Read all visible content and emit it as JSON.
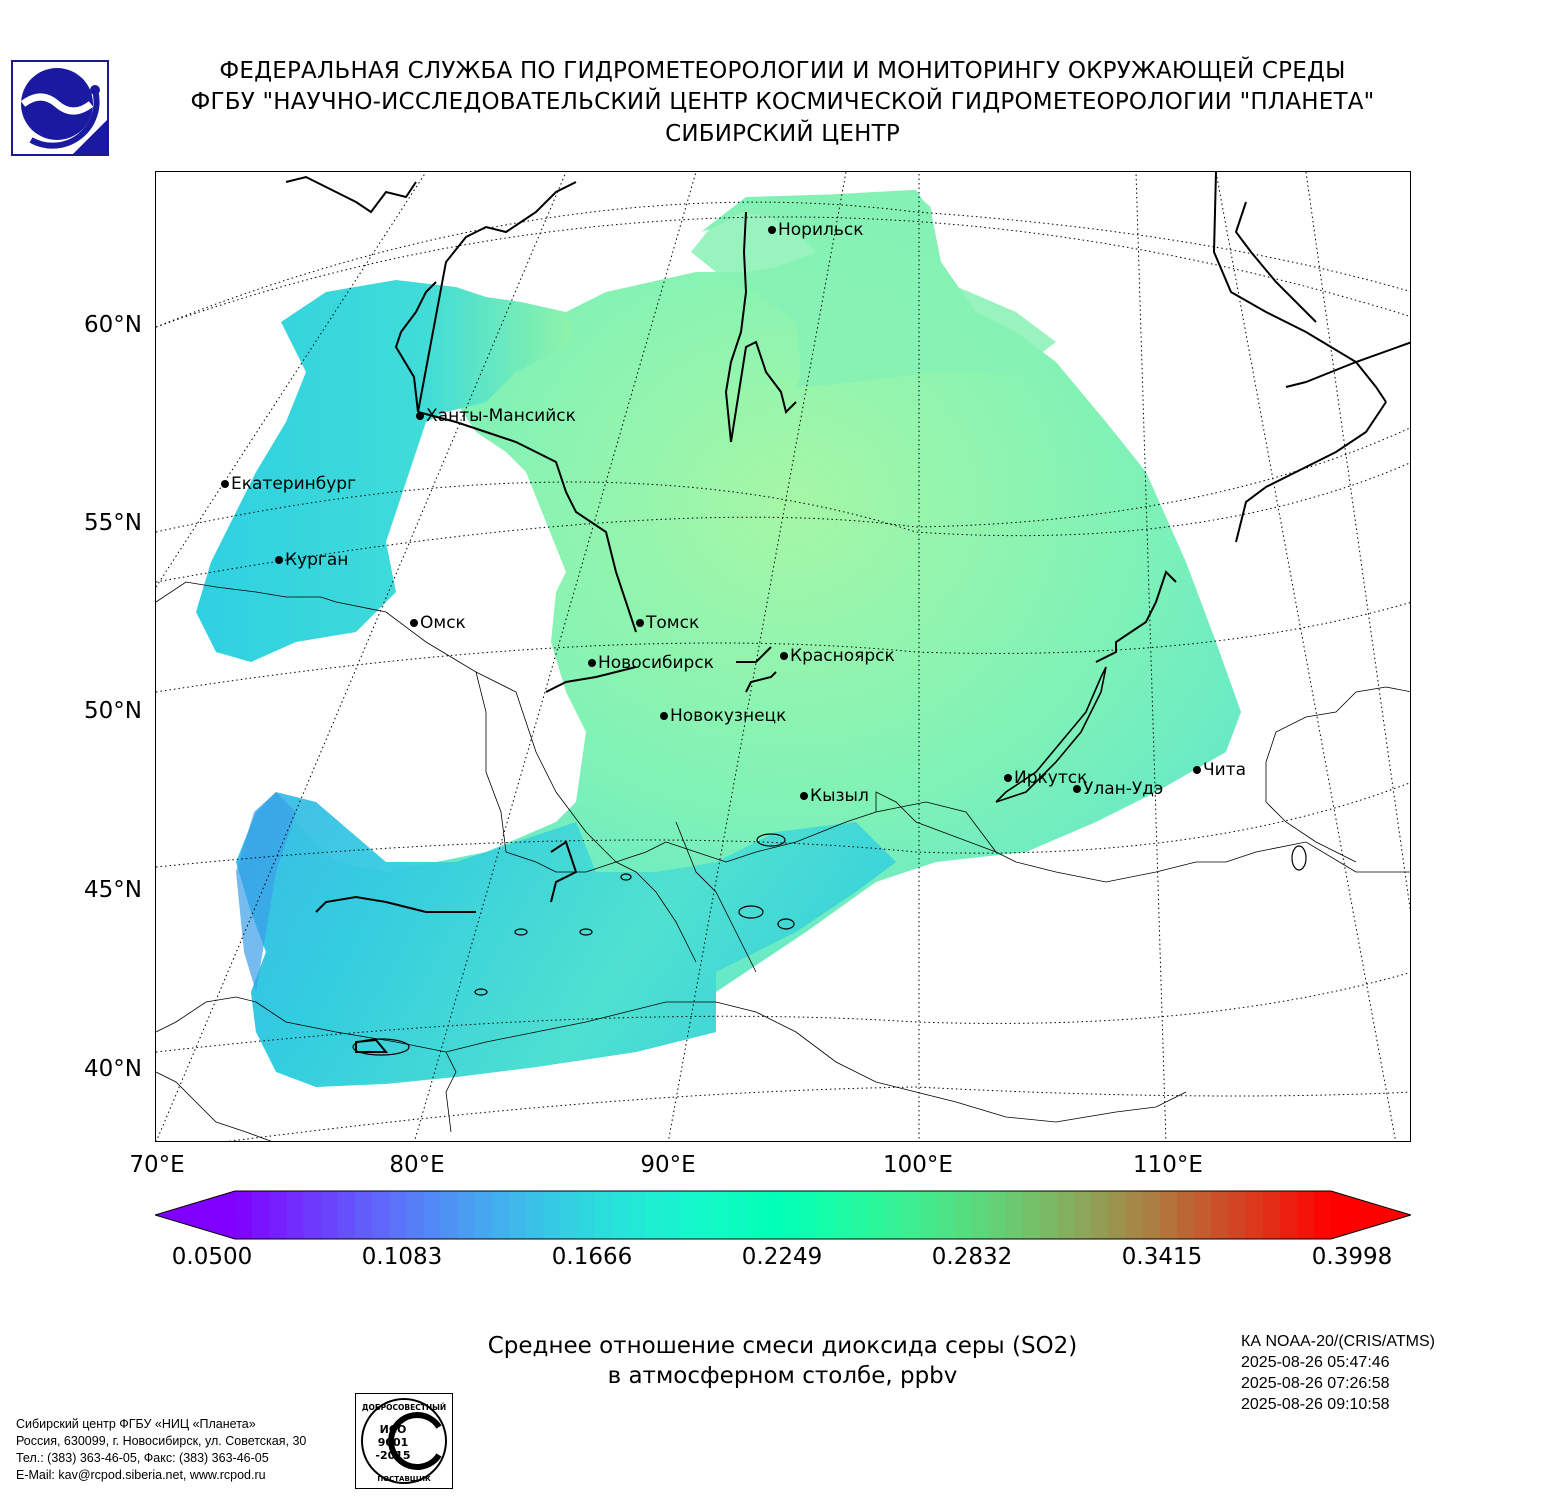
{
  "header": {
    "line1": "ФЕДЕРАЛЬНАЯ СЛУЖБА ПО ГИДРОМЕТЕОРОЛОГИИ И МОНИТОРИНГУ ОКРУЖАЮЩЕЙ СРЕДЫ",
    "line2": "ФГБУ \"НАУЧНО-ИССЛЕДОВАТЕЛЬСКИЙ ЦЕНТР КОСМИЧЕСКОЙ ГИДРОМЕТЕОРОЛОГИИ \"ПЛАНЕТА\"",
    "line3": "СИБИРСКИЙ ЦЕНТР"
  },
  "map": {
    "lat_labels": [
      "60°N",
      "55°N",
      "50°N",
      "45°N",
      "40°N"
    ],
    "lon_labels": [
      "70°E",
      "80°E",
      "90°E",
      "100°E",
      "110°E"
    ],
    "cities": [
      {
        "name": "Норильск"
      },
      {
        "name": "Ханты-Мансийск"
      },
      {
        "name": "Екатеринбург"
      },
      {
        "name": "Курган"
      },
      {
        "name": "Омск"
      },
      {
        "name": "Томск"
      },
      {
        "name": "Новосибирск"
      },
      {
        "name": "Красноярск"
      },
      {
        "name": "Новокузнецк"
      },
      {
        "name": "Кызыл"
      },
      {
        "name": "Иркутск"
      },
      {
        "name": "Улан-Удэ"
      },
      {
        "name": "Чита"
      }
    ],
    "data_fill_color": "#6ef0c0"
  },
  "colorbar": {
    "ticks": [
      "0.0500",
      "0.1083",
      "0.1666",
      "0.2249",
      "0.2832",
      "0.3415",
      "0.3998"
    ],
    "min": 0.05,
    "max": 0.3998,
    "colormap": "rainbow"
  },
  "caption": {
    "line1": "Среднее отношение смеси диоксида серы (SO2)",
    "line2": "в атмосферном столбе, ppbv"
  },
  "satellite": {
    "name": "КА NOAA-20/(CRIS/ATMS)",
    "times": [
      "2025-08-26 05:47:46",
      "2025-08-26 07:26:58",
      "2025-08-26 09:10:58"
    ]
  },
  "address": {
    "line1": "Сибирский центр ФГБУ «НИЦ «Планета»",
    "line2": "Россия, 630099, г. Новосибирск, ул. Советская, 30",
    "line3": "Тел.: (383) 363-46-05, Факс: (383) 363-46-05",
    "line4": "E-Mail: kav@rcpod.siberia.net, www.rcpod.ru"
  },
  "iso_stamp": {
    "top": "ДОБРОСОВЕСТНЫЙ",
    "mid1": "ИСО",
    "mid2": "9001",
    "mid3": "-2015",
    "bottom": "ПОСТАВЩИК"
  }
}
